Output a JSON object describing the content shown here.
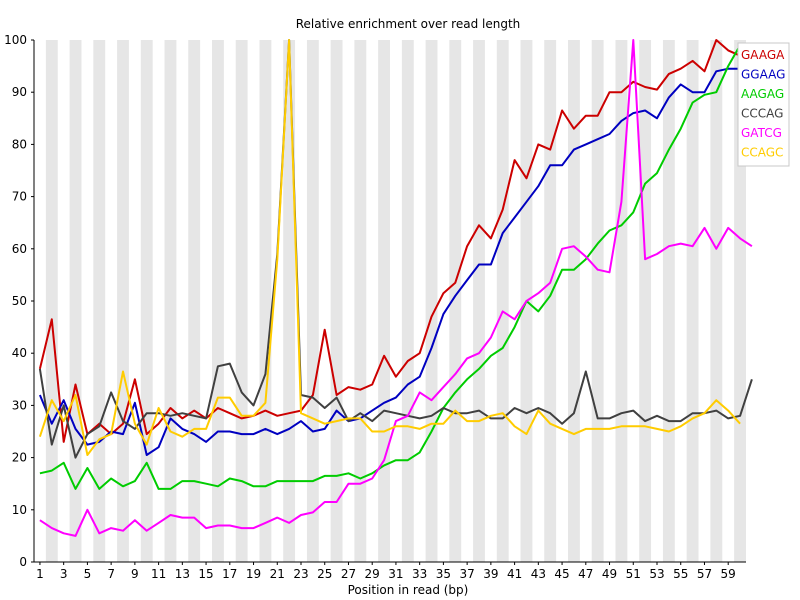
{
  "chart_data": {
    "type": "line",
    "title": "Relative enrichment over read length",
    "xlabel": "Position in read (bp)",
    "ylabel": "",
    "xlim": [
      1,
      60
    ],
    "ylim": [
      0,
      100
    ],
    "x_tick_labels": [
      "1",
      "3",
      "5",
      "7",
      "9",
      "11",
      "13",
      "15",
      "17",
      "19",
      "21",
      "23",
      "25",
      "27",
      "29",
      "31",
      "33",
      "35",
      "37",
      "39",
      "41",
      "43",
      "45",
      "47",
      "49",
      "51",
      "53",
      "55",
      "57",
      "59"
    ],
    "y_tick_labels": [
      "0",
      "10",
      "20",
      "30",
      "40",
      "50",
      "60",
      "70",
      "80",
      "90",
      "100"
    ],
    "alternating_column_shading": true,
    "legend_position": "top-right",
    "series": [
      {
        "name": "GAAGA",
        "color": "#cc0000",
        "values": [
          37,
          46.5,
          23,
          34,
          24.5,
          26.5,
          24.5,
          26.5,
          35,
          24.5,
          26.5,
          29.5,
          27.5,
          29,
          27.5,
          29.5,
          28.5,
          27.5,
          28,
          29,
          28,
          28.5,
          29,
          32,
          44.5,
          32,
          33.5,
          33,
          34,
          39.5,
          35.5,
          38.5,
          40,
          47,
          51.5,
          53.5,
          60.5,
          64.5,
          62,
          67.5,
          77,
          73.5,
          80,
          79,
          86.5,
          83,
          85.5,
          85.5,
          90,
          90,
          92,
          91,
          90.5,
          93.5,
          94.5,
          96,
          94,
          100,
          98,
          97
        ]
      },
      {
        "name": "GGAAG",
        "color": "#0000c0",
        "values": [
          32,
          26.5,
          31,
          25.5,
          22.5,
          23,
          25,
          24.5,
          30.5,
          20.5,
          22,
          27.5,
          25.5,
          24.5,
          23,
          25,
          25,
          24.5,
          24.5,
          25.5,
          24.5,
          25.5,
          27,
          25,
          25.5,
          29,
          27,
          27.5,
          29,
          30.5,
          31.5,
          34,
          35.5,
          41,
          47.5,
          51,
          54,
          57,
          57,
          63,
          66,
          69,
          72,
          76,
          76,
          79,
          80,
          81,
          82,
          84.5,
          86,
          86.5,
          85,
          89,
          91.5,
          90,
          90,
          94,
          94.5,
          94.5,
          98
        ]
      },
      {
        "name": "AAGAG",
        "color": "#00cc00",
        "values": [
          17,
          17.5,
          19,
          14,
          18,
          14,
          16,
          14.5,
          15.5,
          19,
          14,
          14,
          15.5,
          15.5,
          15,
          14.5,
          16,
          15.5,
          14.5,
          14.5,
          15.5,
          15.5,
          15.5,
          15.5,
          16.5,
          16.5,
          17,
          16,
          17,
          18.5,
          19.5,
          19.5,
          21,
          25,
          29.5,
          32.5,
          35,
          37,
          39.5,
          41,
          45,
          50,
          48,
          51,
          56,
          56,
          58,
          61,
          63.5,
          64.5,
          67,
          72.5,
          74.5,
          79,
          83,
          88,
          89.5,
          90,
          95,
          99
        ]
      },
      {
        "name": "CCCAG",
        "color": "#404040",
        "values": [
          37,
          22.5,
          30,
          20,
          24.5,
          26,
          32.5,
          27,
          25.5,
          28.5,
          28.5,
          28,
          28.5,
          28,
          27.5,
          37.5,
          38,
          32.5,
          30,
          36,
          59,
          100,
          32,
          31.5,
          29.5,
          31.5,
          27,
          28.5,
          27,
          29,
          28.5,
          28,
          27.5,
          28,
          29.5,
          28.5,
          28.5,
          29,
          27.5,
          27.5,
          29.5,
          28.5,
          29.5,
          28.5,
          26.5,
          28.5,
          36.5,
          27.5,
          27.5,
          28.5,
          29,
          27,
          28,
          27,
          27,
          28.5,
          28.5,
          29,
          27.5,
          28,
          35
        ]
      },
      {
        "name": "GATCG",
        "color": "#ff00ff",
        "values": [
          8,
          6.5,
          5.5,
          5,
          10,
          5.5,
          6.5,
          6,
          8,
          6,
          7.5,
          9,
          8.5,
          8.5,
          6.5,
          7,
          7,
          6.5,
          6.5,
          7.5,
          8.5,
          7.5,
          9,
          9.5,
          11.5,
          11.5,
          15,
          15,
          16,
          19.5,
          27,
          28,
          32.5,
          31,
          33.5,
          36,
          39,
          40,
          43,
          48,
          46.5,
          50,
          51.5,
          53.5,
          60,
          60.5,
          58.5,
          56,
          55.5,
          69,
          100,
          58,
          59,
          60.5,
          61,
          60.5,
          64,
          60,
          64,
          62,
          60.5
        ]
      },
      {
        "name": "CCAGC",
        "color": "#ffcc00",
        "values": [
          24,
          31,
          27,
          32,
          20.5,
          23.5,
          24.5,
          36.5,
          26.5,
          22.5,
          29.5,
          25,
          24,
          25.5,
          25.5,
          31.5,
          31.5,
          28,
          28,
          30.5,
          58,
          100,
          28.5,
          27.5,
          26.5,
          27,
          27.5,
          27.5,
          25,
          25,
          26,
          26,
          25.5,
          26.5,
          26.5,
          29,
          27,
          27,
          28,
          28.5,
          26,
          24.5,
          29,
          26.5,
          25.5,
          24.5,
          25.5,
          25.5,
          25.5,
          26,
          26,
          26,
          25.5,
          25,
          26,
          27.5,
          28.5,
          31,
          29,
          26.5
        ]
      }
    ]
  }
}
